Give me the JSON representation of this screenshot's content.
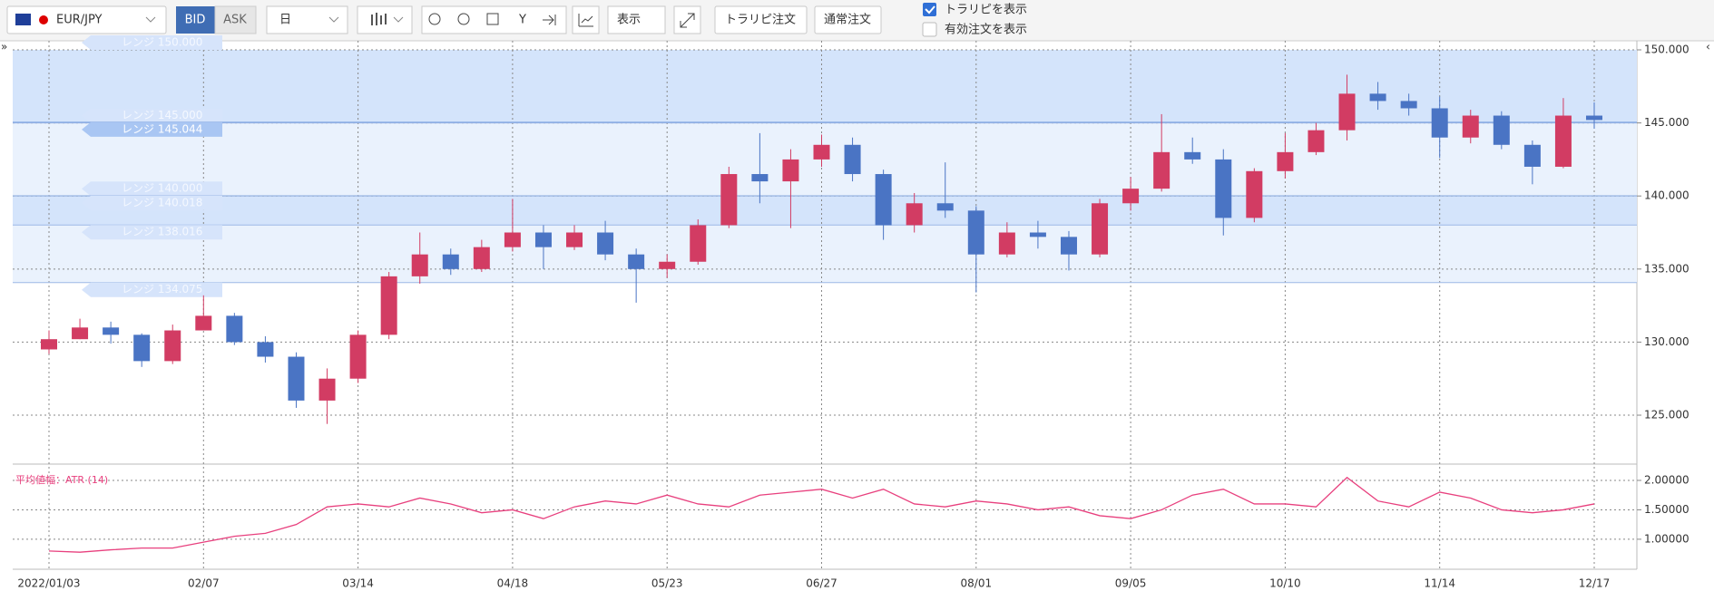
{
  "toolbar": {
    "symbol": "EUR/JPY",
    "bid": "BID",
    "ask": "ASK",
    "period": "日",
    "display": "表示",
    "trarepi_order": "トラリピ注文",
    "normal_order": "通常注文",
    "show_trarepi": "トラリピを表示",
    "show_orders": "有効注文を表示"
  },
  "chart_data": [
    {
      "type": "candlestick",
      "categories": [
        "2022/01/03",
        null,
        null,
        null,
        null,
        "02/07",
        null,
        null,
        null,
        null,
        "03/14",
        null,
        null,
        null,
        null,
        "04/18",
        null,
        null,
        null,
        null,
        "05/23",
        null,
        null,
        null,
        null,
        "06/27",
        null,
        null,
        null,
        null,
        "08/01",
        null,
        null,
        null,
        null,
        "09/05",
        null,
        null,
        null,
        null,
        "10/10",
        null,
        null,
        null,
        null,
        "11/14",
        null,
        null,
        null,
        null,
        "12/17"
      ],
      "open": [
        129.5,
        130.2,
        131.0,
        130.5,
        128.7,
        130.8,
        131.8,
        130.0,
        129.0,
        126.0,
        127.5,
        130.5,
        134.5,
        136.0,
        135.0,
        136.5,
        137.5,
        136.5,
        137.5,
        136.0,
        135.0,
        135.5,
        138.0,
        141.5,
        141.0,
        142.5,
        143.5,
        141.5,
        138.0,
        139.5,
        139.0,
        136.0,
        137.5,
        137.2,
        136.0,
        139.5,
        140.5,
        143.0,
        142.5,
        138.5,
        141.7,
        143.0,
        144.5,
        147.0,
        146.5,
        146.0,
        144.0,
        145.5,
        143.5,
        142.0,
        145.5
      ],
      "high": [
        130.8,
        131.6,
        131.4,
        130.6,
        131.2,
        133.2,
        132.0,
        130.4,
        129.3,
        128.2,
        130.8,
        134.8,
        137.5,
        136.4,
        137.0,
        139.8,
        138.0,
        138.0,
        138.3,
        136.4,
        136.0,
        138.4,
        142.0,
        144.3,
        143.2,
        144.2,
        144.0,
        141.8,
        140.2,
        142.3,
        139.3,
        138.2,
        138.3,
        137.6,
        139.8,
        141.3,
        145.6,
        144.0,
        143.2,
        141.9,
        144.3,
        145.0,
        148.3,
        147.8,
        147.0,
        146.8,
        145.9,
        145.8,
        143.8,
        146.7,
        146.4
      ],
      "low": [
        129.2,
        130.2,
        129.9,
        128.3,
        128.5,
        130.8,
        129.8,
        128.6,
        125.5,
        124.4,
        127.2,
        130.2,
        134.0,
        134.6,
        134.8,
        136.2,
        135.0,
        136.3,
        135.6,
        132.7,
        134.4,
        135.3,
        137.8,
        139.5,
        137.8,
        142.0,
        141.0,
        137.0,
        137.5,
        138.5,
        133.4,
        135.8,
        136.4,
        134.9,
        135.8,
        139.0,
        140.3,
        142.2,
        137.3,
        138.2,
        141.2,
        142.8,
        143.8,
        145.9,
        145.5,
        142.6,
        143.6,
        143.2,
        140.8,
        141.9,
        144.6
      ],
      "close": [
        130.2,
        131.0,
        130.5,
        128.7,
        130.8,
        131.8,
        130.0,
        129.0,
        126.0,
        127.5,
        130.5,
        134.5,
        136.0,
        135.0,
        136.5,
        137.5,
        136.5,
        137.5,
        136.0,
        135.0,
        135.5,
        138.0,
        141.5,
        141.0,
        142.5,
        143.5,
        141.5,
        138.0,
        139.5,
        139.0,
        136.0,
        137.5,
        137.2,
        136.0,
        139.5,
        140.5,
        143.0,
        142.5,
        138.5,
        141.7,
        143.0,
        144.5,
        147.0,
        146.5,
        146.0,
        144.0,
        145.5,
        143.5,
        142.0,
        145.5,
        145.2
      ],
      "up_color": "#d23c63",
      "down_color": "#4a74c4",
      "ylim": [
        121.9,
        150.62
      ],
      "yticks": [
        {
          "value": 125,
          "label": "125.000"
        },
        {
          "value": 130,
          "label": "130.000"
        },
        {
          "value": 135,
          "label": "135.000"
        },
        {
          "value": 140,
          "label": "140.000"
        },
        {
          "value": 145,
          "label": "145.000"
        },
        {
          "value": 150,
          "label": "150.000"
        }
      ],
      "grid": true,
      "range_bands": [
        {
          "top": 150,
          "bottom": 145.044,
          "color": "#d4e4fb"
        },
        {
          "top": 145.044,
          "bottom": 140.018,
          "color": "#eaf2fd"
        },
        {
          "top": 140.018,
          "bottom": 138.016,
          "color": "#d4e4fb"
        },
        {
          "top": 138.016,
          "bottom": 134.075,
          "color": "#eaf2fd"
        }
      ],
      "range_labels": [
        {
          "value": 150,
          "label": "レンジ 150.000",
          "active": false
        },
        {
          "value": 145,
          "label": "レンジ 145.000",
          "active": false
        },
        {
          "value": 145.044,
          "label": "レンジ 145.044",
          "active": true
        },
        {
          "value": 140,
          "label": "レンジ 140.000",
          "active": false
        },
        {
          "value": 140.018,
          "label": "レンジ 140.018",
          "active": false
        },
        {
          "value": 138.016,
          "label": "レンジ 138.016",
          "active": false
        },
        {
          "value": 134.075,
          "label": "レンジ 134.075",
          "active": false
        }
      ]
    },
    {
      "type": "line",
      "title": "平均値幅：ATR (14)",
      "series": [
        {
          "color": "#e8407e",
          "values": [
            0.8,
            0.78,
            0.82,
            0.85,
            0.85,
            0.95,
            1.05,
            1.1,
            1.25,
            1.55,
            1.6,
            1.55,
            1.7,
            1.6,
            1.45,
            1.5,
            1.35,
            1.55,
            1.65,
            1.6,
            1.75,
            1.6,
            1.55,
            1.75,
            1.8,
            1.85,
            1.7,
            1.85,
            1.6,
            1.55,
            1.65,
            1.6,
            1.5,
            1.55,
            1.4,
            1.35,
            1.5,
            1.75,
            1.85,
            1.6,
            1.6,
            1.55,
            2.05,
            1.65,
            1.55,
            1.8,
            1.7,
            1.5,
            1.45,
            1.5,
            1.6
          ]
        }
      ],
      "ylim": [
        0.49,
        2.2
      ],
      "yticks": [
        {
          "value": 1,
          "label": "1.00000"
        },
        {
          "value": 1.5,
          "label": "1.50000"
        },
        {
          "value": 2,
          "label": "2.00000"
        }
      ],
      "grid": true
    }
  ]
}
